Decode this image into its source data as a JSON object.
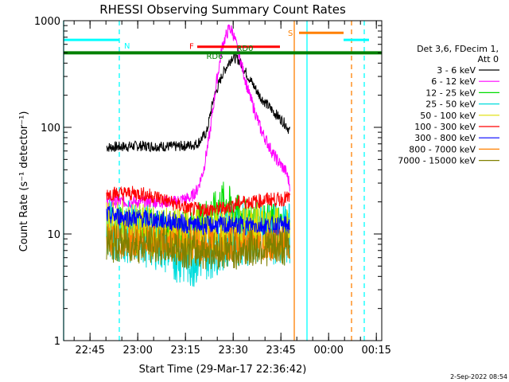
{
  "chart_data": {
    "type": "line",
    "title": "RHESSI Observing Summary Count Rates",
    "xlabel": "Start Time (29-Mar-17 22:36:42)",
    "ylabel": "Count Rate (s⁻¹ detector⁻¹)",
    "yscale": "log",
    "ylim": [
      1,
      1000
    ],
    "xlim_minutes": [
      0,
      100
    ],
    "x_ticks": [
      {
        "t": 8.3,
        "label": "22:45"
      },
      {
        "t": 23.3,
        "label": "23:00"
      },
      {
        "t": 38.3,
        "label": "23:15"
      },
      {
        "t": 53.3,
        "label": "23:30"
      },
      {
        "t": 68.3,
        "label": "23:45"
      },
      {
        "t": 83.3,
        "label": "00:00"
      },
      {
        "t": 98.3,
        "label": "00:15"
      }
    ],
    "y_ticks": [
      {
        "v": 1,
        "label": "1"
      },
      {
        "v": 10,
        "label": "10"
      },
      {
        "v": 100,
        "label": "100"
      },
      {
        "v": 1000,
        "label": "1000"
      }
    ],
    "legend_header": [
      "Det 3,6, FDecim 1,",
      "Att 0"
    ],
    "legend_placement": "right",
    "series": [
      {
        "name": "3 - 6 keV",
        "color": "#000000",
        "t": [
          13.5,
          24,
          35,
          40,
          42,
          45,
          47,
          50,
          53,
          55,
          58,
          62,
          66,
          70,
          71.2
        ],
        "values": [
          65,
          67,
          66,
          68,
          70,
          90,
          180,
          320,
          460,
          430,
          300,
          190,
          140,
          105,
          90
        ]
      },
      {
        "name": "6 - 12 keV",
        "color": "#ff00ff",
        "t": [
          13.5,
          24,
          35,
          37,
          40,
          42,
          44,
          46,
          48,
          50,
          52,
          53,
          55,
          58,
          62,
          66,
          70,
          71.2
        ],
        "values": [
          20,
          20,
          20,
          21,
          22,
          26,
          40,
          90,
          260,
          600,
          850,
          800,
          500,
          220,
          95,
          55,
          38,
          28
        ]
      },
      {
        "name": "12 - 25 keV",
        "color": "#00dd00",
        "t": [
          13.5,
          24,
          35,
          40,
          44,
          48,
          50,
          52,
          54,
          58,
          62,
          66,
          70,
          71.2
        ],
        "values": [
          12,
          12,
          11,
          12,
          14,
          17,
          21,
          19,
          16,
          14,
          13,
          13,
          12,
          12
        ]
      },
      {
        "name": "25 - 50 keV",
        "color": "#00dddd",
        "t": [
          13.5,
          24,
          30,
          35,
          40,
          44,
          48,
          50,
          54,
          58,
          62,
          66,
          70,
          71.2
        ],
        "values": [
          11,
          10,
          9,
          7,
          6,
          7,
          8,
          9,
          10,
          10,
          10,
          10,
          10,
          10
        ]
      },
      {
        "name": "50 - 100 keV",
        "color": "#dddd00",
        "t": [
          13.5,
          24,
          35,
          40,
          44,
          48,
          52,
          56,
          60,
          64,
          68,
          71.2
        ],
        "values": [
          12,
          11,
          10,
          10,
          10,
          10,
          10,
          11,
          11,
          11,
          10,
          10
        ]
      },
      {
        "name": "100 - 300 keV",
        "color": "#ff0000",
        "t": [
          13.5,
          24,
          30,
          35,
          40,
          44,
          48,
          52,
          56,
          60,
          64,
          68,
          71.2
        ],
        "values": [
          24,
          24,
          22,
          19,
          17,
          17,
          17,
          18,
          20,
          20,
          21,
          21,
          22
        ]
      },
      {
        "name": "300 - 800 keV",
        "color": "#0000ff",
        "t": [
          13.5,
          24,
          35,
          40,
          44,
          48,
          52,
          56,
          60,
          64,
          68,
          71.2
        ],
        "values": [
          15,
          14,
          13,
          12,
          12,
          12,
          12,
          12,
          12,
          12,
          12,
          12
        ]
      },
      {
        "name": "800 - 7000 keV",
        "color": "#ff8000",
        "t": [
          13.5,
          24,
          35,
          40,
          44,
          48,
          52,
          56,
          60,
          64,
          68,
          71.2
        ],
        "values": [
          9,
          8.5,
          8,
          8,
          8,
          8,
          8,
          8,
          8,
          8,
          8,
          8
        ]
      },
      {
        "name": "7000 - 15000 keV",
        "color": "#808000",
        "t": [
          13.5,
          24,
          35,
          40,
          44,
          48,
          52,
          56,
          60,
          64,
          68,
          71.2
        ],
        "values": [
          8,
          8,
          7.5,
          7,
          7,
          7,
          7,
          7,
          7.5,
          7.5,
          7.5,
          7.5
        ]
      }
    ],
    "segments": [
      {
        "label": "F",
        "color": "#ff0000",
        "t0": 42,
        "t1": 68,
        "value": 570
      },
      {
        "label": "N",
        "color": "#00ffff",
        "t0": 0,
        "t1": 17.5,
        "value": 660
      },
      {
        "label": "S",
        "color": "#ff8000",
        "t0": 74,
        "t1": 88,
        "value": 770
      },
      {
        "label": "",
        "color": "#00ffff",
        "t0": 88,
        "t1": 96,
        "value": 660
      },
      {
        "label": "",
        "color": "#008000",
        "t0": 0,
        "t1": 100,
        "value": 500
      }
    ],
    "annotations": [
      {
        "text": "RD6",
        "color": "#008000",
        "t": 47.5,
        "value": 440
      },
      {
        "text": "RD0",
        "color": "#008000",
        "t": 57,
        "value": 520
      }
    ],
    "vlines": [
      {
        "t": 0,
        "color": "#00ffff",
        "dashed": false
      },
      {
        "t": 17.5,
        "color": "#00ffff",
        "dashed": true
      },
      {
        "t": 72.5,
        "color": "#ff8000",
        "dashed": false
      },
      {
        "t": 76.5,
        "color": "#00ffff",
        "dashed": false
      },
      {
        "t": 90.5,
        "color": "#ff8000",
        "dashed": true
      },
      {
        "t": 94.5,
        "color": "#00ffff",
        "dashed": true
      }
    ]
  },
  "footer_date": "2-Sep-2022 08:54"
}
